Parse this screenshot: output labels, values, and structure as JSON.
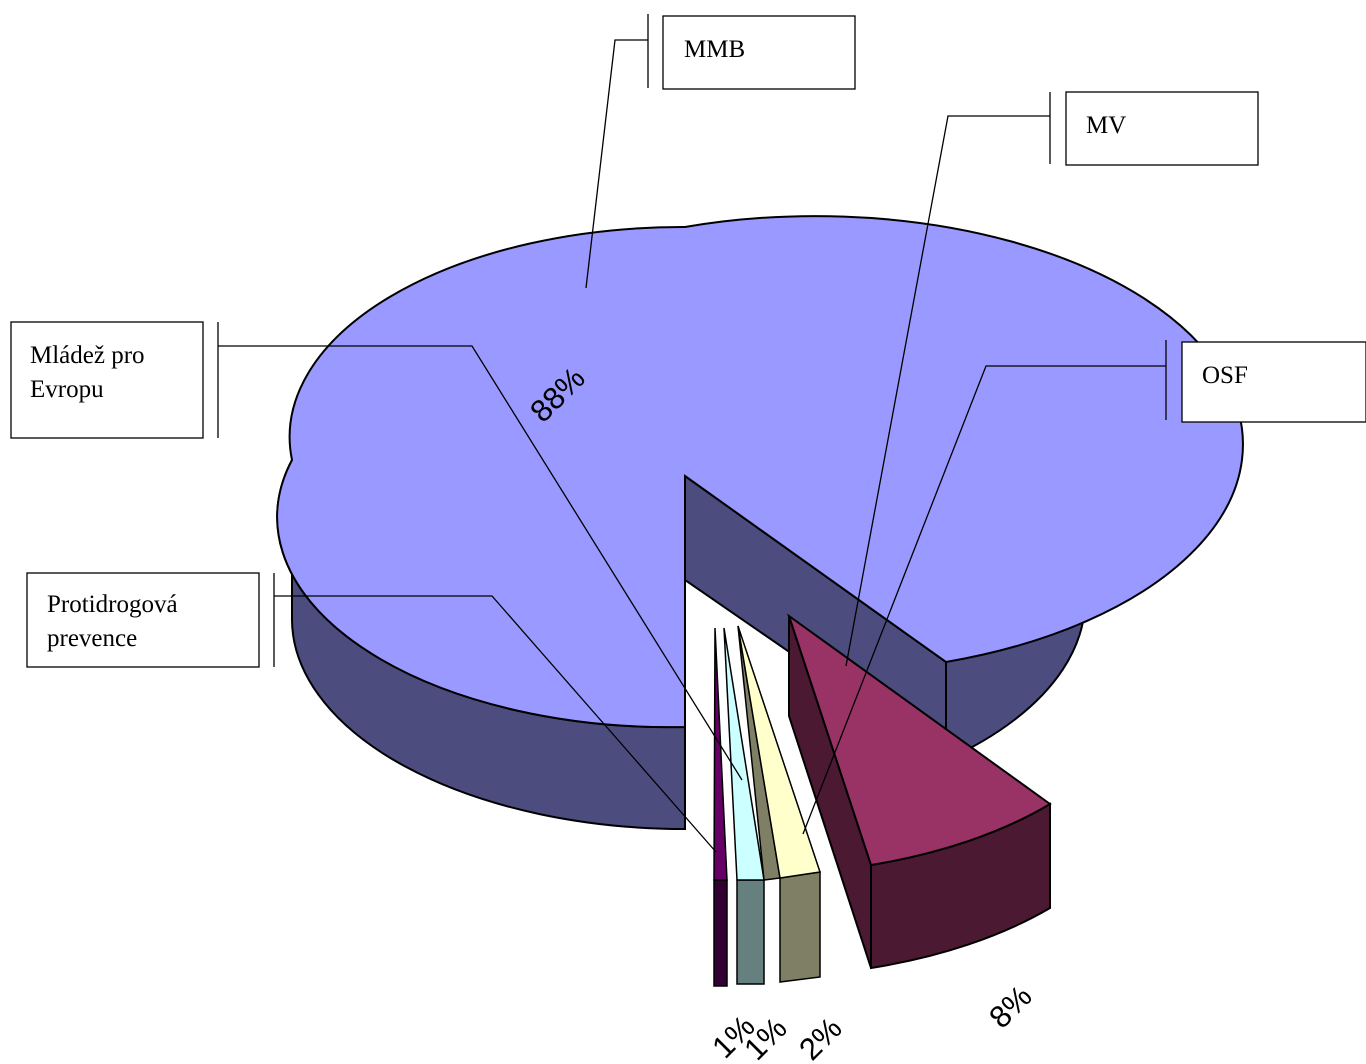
{
  "chart_data": {
    "type": "pie",
    "style": "3d-exploded",
    "categories": [
      "MMB",
      "Protidrogová prevence",
      "Mládež pro Evropu",
      "OSF",
      "MV"
    ],
    "values": [
      88,
      1,
      1,
      2,
      8
    ],
    "value_labels": [
      "88%",
      "1%",
      "1%",
      "2%",
      "8%"
    ],
    "legend": "callout-labels",
    "colors": {
      "top": [
        "#9999ff",
        "#660066",
        "#ccffff",
        "#ffffcc",
        "#993366"
      ],
      "side": [
        "#4c4c7f",
        "#330033",
        "#667f7f",
        "#7f7f66",
        "#4c1933"
      ]
    }
  }
}
